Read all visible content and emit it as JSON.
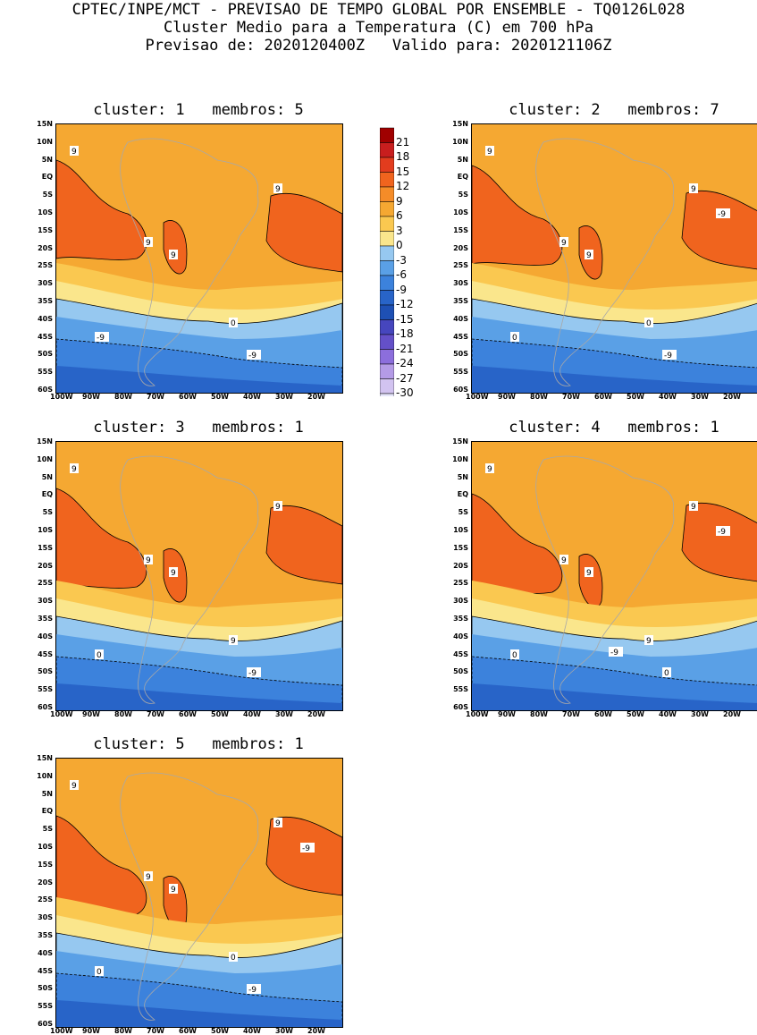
{
  "header": {
    "line1": "CPTEC/INPE/MCT - PREVISAO DE TEMPO GLOBAL POR ENSEMBLE - TQ0126L028",
    "line2": "Cluster Medio para a Temperatura (C) em 700 hPa",
    "line3": "Previsao de: 2020120400Z   Valido para: 2020121106Z"
  },
  "lat_labels": [
    "15N",
    "10N",
    "5N",
    "EQ",
    "5S",
    "10S",
    "15S",
    "20S",
    "25S",
    "30S",
    "35S",
    "40S",
    "45S",
    "50S",
    "55S",
    "60S"
  ],
  "lon_labels": [
    "100W",
    "90W",
    "80W",
    "70W",
    "60W",
    "50W",
    "40W",
    "30W",
    "20W"
  ],
  "legend": {
    "labels": [
      "21",
      "18",
      "15",
      "12",
      "9",
      "6",
      "3",
      "0",
      "-3",
      "-6",
      "-9",
      "-12",
      "-15",
      "-18",
      "-21",
      "-24",
      "-27",
      "-30"
    ],
    "colors": [
      "#a00000",
      "#c81e1e",
      "#e23c1e",
      "#f0641e",
      "#f58c28",
      "#f5a832",
      "#fac850",
      "#fae68c",
      "#96c8f0",
      "#5aa0e6",
      "#3c82dc",
      "#2864c8",
      "#1e50b4",
      "#4646be",
      "#6450c8",
      "#8c6edc",
      "#b49be6",
      "#d2c3f0",
      "#e6e6fa"
    ]
  },
  "panels": [
    {
      "title": "cluster: 1   membros: 5",
      "contour_labels": [
        "9",
        "9",
        "9",
        "9",
        "0",
        "-9",
        "-9"
      ]
    },
    {
      "title": "cluster: 2   membros: 7",
      "contour_labels": [
        "9",
        "9",
        "9",
        "9",
        "0",
        "0",
        "-9",
        "-9"
      ]
    },
    {
      "title": "cluster: 3   membros: 1",
      "contour_labels": [
        "9",
        "9",
        "9",
        "9",
        "9",
        "0",
        "-9"
      ]
    },
    {
      "title": "cluster: 4   membros: 1",
      "contour_labels": [
        "9",
        "9",
        "9",
        "9",
        "9",
        "0",
        "0",
        "-9",
        "-9"
      ]
    },
    {
      "title": "cluster: 5   membros: 1",
      "contour_labels": [
        "9",
        "9",
        "9",
        "9",
        "0",
        "0",
        "-9",
        "-9"
      ]
    }
  ]
}
